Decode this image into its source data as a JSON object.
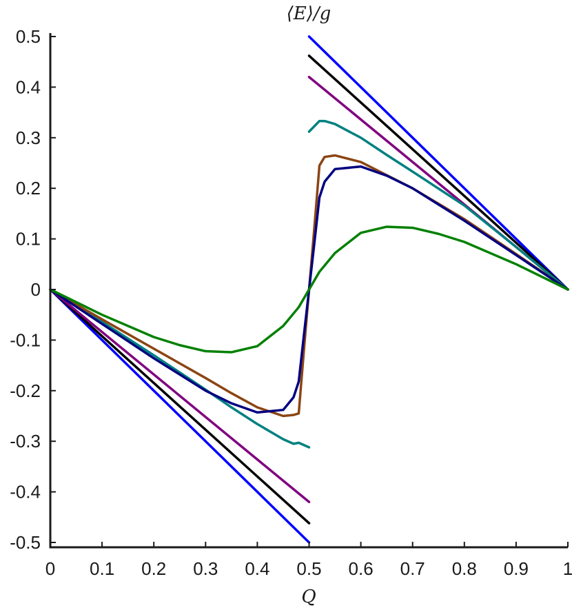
{
  "chart_data": {
    "type": "line",
    "title": "⟨E⟩/g",
    "xlabel": "Q",
    "ylabel": "",
    "xlim": [
      0,
      1
    ],
    "ylim": [
      -0.5,
      0.5
    ],
    "grid": false,
    "x_ticks": [
      0,
      0.1,
      0.2,
      0.3,
      0.4,
      0.5,
      0.6,
      0.7,
      0.8,
      0.9,
      1
    ],
    "x_tick_labels": [
      "0",
      "0.1",
      "0.2",
      "0.3",
      "0.4",
      "0.5",
      "0.6",
      "0.7",
      "0.8",
      "0.9",
      "1"
    ],
    "y_ticks": [
      -0.5,
      -0.4,
      -0.3,
      -0.2,
      -0.1,
      0,
      0.1,
      0.2,
      0.3,
      0.4,
      0.5
    ],
    "y_tick_labels": [
      "-0.5",
      "-0.4",
      "-0.3",
      "-0.2",
      "-0.1",
      "0",
      "0.1",
      "0.2",
      "0.3",
      "0.4",
      "0.5"
    ],
    "series": [
      {
        "color": "#0000ff",
        "segments": [
          {
            "x": [
              0,
              0.5
            ],
            "y": [
              0,
              -0.5
            ]
          },
          {
            "x": [
              0.5,
              1
            ],
            "y": [
              0.5,
              0
            ]
          }
        ]
      },
      {
        "color": "#000000",
        "segments": [
          {
            "x": [
              0,
              0.5
            ],
            "y": [
              0,
              -0.462
            ]
          },
          {
            "x": [
              0.5,
              1
            ],
            "y": [
              0.462,
              0
            ]
          }
        ]
      },
      {
        "color": "#800080",
        "segments": [
          {
            "x": [
              0,
              0.5
            ],
            "y": [
              0,
              -0.42
            ]
          },
          {
            "x": [
              0.5,
              1
            ],
            "y": [
              0.42,
              0
            ]
          }
        ]
      },
      {
        "color": "#008080",
        "segments": [
          {
            "x": [
              0,
              0.1,
              0.2,
              0.3,
              0.35,
              0.4,
              0.45,
              0.47,
              0.48,
              0.5
            ],
            "y": [
              0,
              -0.064,
              -0.13,
              -0.198,
              -0.233,
              -0.266,
              -0.296,
              -0.305,
              -0.303,
              -0.312
            ]
          },
          {
            "x": [
              0.5,
              0.52,
              0.53,
              0.55,
              0.6,
              0.65,
              0.7,
              0.8,
              0.9,
              1
            ],
            "y": [
              0.312,
              0.333,
              0.333,
              0.327,
              0.3,
              0.266,
              0.233,
              0.166,
              0.084,
              0
            ]
          }
        ]
      },
      {
        "color": "#8b4513",
        "segments": [
          {
            "x": [
              0,
              0.1,
              0.2,
              0.3,
              0.35,
              0.4,
              0.45,
              0.47,
              0.48,
              0.49,
              0.5
            ],
            "y": [
              0,
              -0.059,
              -0.117,
              -0.175,
              -0.205,
              -0.233,
              -0.25,
              -0.248,
              -0.245,
              -0.12,
              0
            ]
          },
          {
            "x": [
              0.5,
              0.51,
              0.52,
              0.53,
              0.55,
              0.6,
              0.7,
              0.8,
              0.9,
              1
            ],
            "y": [
              0,
              0.12,
              0.245,
              0.262,
              0.265,
              0.252,
              0.2,
              0.139,
              0.07,
              0
            ]
          }
        ]
      },
      {
        "color": "#000080",
        "segments": [
          {
            "x": [
              0,
              0.1,
              0.2,
              0.3,
              0.35,
              0.4,
              0.45,
              0.47,
              0.48,
              0.49,
              0.5
            ],
            "y": [
              0,
              -0.068,
              -0.136,
              -0.2,
              -0.225,
              -0.243,
              -0.238,
              -0.213,
              -0.182,
              -0.09,
              0
            ]
          },
          {
            "x": [
              0.5,
              0.51,
              0.52,
              0.53,
              0.55,
              0.6,
              0.65,
              0.7,
              0.8,
              0.9,
              1
            ],
            "y": [
              0,
              0.09,
              0.182,
              0.213,
              0.238,
              0.243,
              0.225,
              0.2,
              0.136,
              0.068,
              0
            ]
          }
        ]
      },
      {
        "color": "#008000",
        "segments": [
          {
            "x": [
              0,
              0.1,
              0.2,
              0.25,
              0.3,
              0.35,
              0.4,
              0.45,
              0.48,
              0.5,
              0.52,
              0.55,
              0.6,
              0.65,
              0.7,
              0.75,
              0.8,
              0.9,
              1
            ],
            "y": [
              0,
              -0.05,
              -0.094,
              -0.11,
              -0.122,
              -0.124,
              -0.112,
              -0.072,
              -0.035,
              0,
              0.035,
              0.072,
              0.112,
              0.124,
              0.122,
              0.11,
              0.094,
              0.05,
              0
            ]
          }
        ]
      }
    ]
  }
}
